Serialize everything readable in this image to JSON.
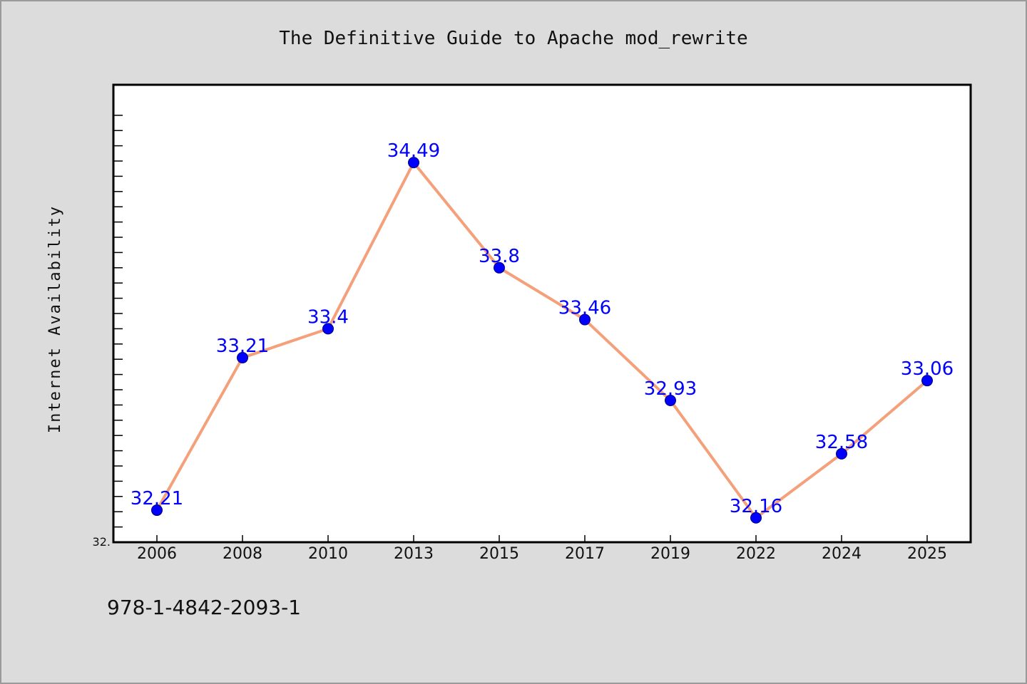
{
  "footer_code": "978-1-4842-2093-1",
  "chart_data": {
    "type": "line",
    "title": "The Definitive Guide to Apache mod_rewrite",
    "xlabel": "",
    "ylabel": "Internet Availability",
    "categories": [
      "2006",
      "2008",
      "2010",
      "2013",
      "2015",
      "2017",
      "2019",
      "2022",
      "2024",
      "2025"
    ],
    "series": [
      {
        "values": [
          32.21,
          33.21,
          33.4,
          34.49,
          33.8,
          33.46,
          32.93,
          32.16,
          32.58,
          33.06
        ],
        "data_labels": [
          "32.21",
          "33.21",
          "33.4",
          "34.49",
          "33.8",
          "33.46",
          "32.93",
          "32.16",
          "32.58",
          "33.06"
        ],
        "line_color": "#f4a07a",
        "marker_color": "#0000ff"
      }
    ],
    "ylim": [
      32.0,
      35.0
    ],
    "ytick_labels": [
      "32."
    ],
    "grid": false,
    "legend": "none",
    "plot_background": "#ffffff"
  }
}
